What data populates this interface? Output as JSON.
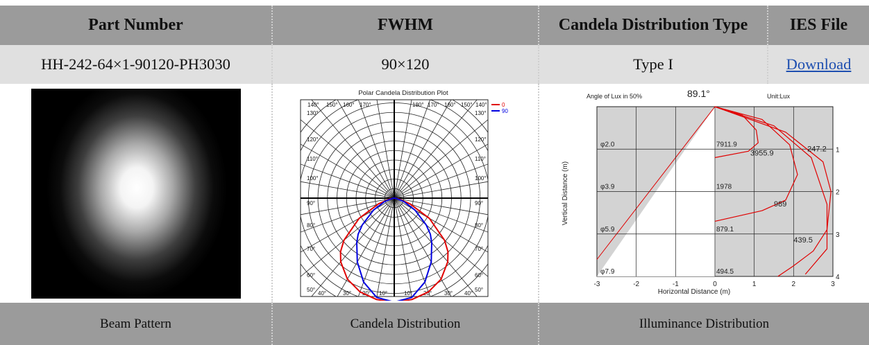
{
  "table": {
    "headers": [
      "Part Number",
      "FWHM",
      "Candela Distribution Type",
      "IES File"
    ],
    "row": {
      "part_number": "HH-242-64×1-90120-PH3030",
      "fwhm": "90×120",
      "type": "Type I",
      "ies_link": "Download"
    },
    "captions": [
      "Beam Pattern",
      "Candela Distribution",
      "Illuminance Distribution"
    ]
  },
  "colors": {
    "header_bg": "#9b9b9b",
    "value_bg": "#e0e0e0",
    "link": "#1e4fb0",
    "series_0": "#e00000",
    "series_90": "#0000e0"
  },
  "chart_data": [
    {
      "type": "polar",
      "title": "Polar Candela Distribution Plot",
      "angle_labels_left": [
        "140°",
        "150°",
        "160°",
        "170°",
        "130°",
        "120°",
        "110°",
        "100°",
        "90°",
        "80°",
        "70°",
        "60°",
        "50°",
        "40°",
        "30°",
        "20°",
        "10°"
      ],
      "angle_labels_right": [
        "180°",
        "170°",
        "160°",
        "150°",
        "140°",
        "130°",
        "120°",
        "110°",
        "100°",
        "90°",
        "80°",
        "70°",
        "60°",
        "50°",
        "40°",
        "30°",
        "20°",
        "10°"
      ],
      "angles": [
        0,
        10,
        20,
        30,
        40,
        45,
        50,
        60,
        70,
        80,
        90
      ],
      "series": [
        {
          "name": "0",
          "values": [
            1.0,
            0.99,
            0.96,
            0.9,
            0.8,
            0.73,
            0.63,
            0.39,
            0.16,
            0.04,
            0
          ]
        },
        {
          "name": "90",
          "values": [
            1.0,
            0.97,
            0.86,
            0.71,
            0.56,
            0.49,
            0.4,
            0.23,
            0.1,
            0.02,
            0
          ]
        }
      ]
    },
    {
      "type": "line",
      "title": "Angle of Lux in 50%",
      "angle_value": "89.1°",
      "unit": "Unit:Lux",
      "xlabel": "Horizontal Distance (m)",
      "ylabel": "Vertical Distance (m)",
      "xlim": [
        -3,
        3
      ],
      "ylim": [
        0,
        4
      ],
      "x_ticks": [
        "-3",
        "-2",
        "-1",
        "0",
        "1",
        "2",
        "3"
      ],
      "y_ticks": [
        "1",
        "2",
        "3",
        "4"
      ],
      "diameters": [
        "φ2.0",
        "φ3.9",
        "φ5.9",
        "φ7.9"
      ],
      "center_lux": [
        "7911.9",
        "1978",
        "879.1",
        "494.5"
      ],
      "contours": [
        {
          "label": "3955.9",
          "label_x": 0.9,
          "label_y": 1.15,
          "points": [
            [
              0,
              0
            ],
            [
              0.7,
              0.2
            ],
            [
              1.05,
              0.55
            ],
            [
              1.1,
              0.85
            ],
            [
              0.85,
              1.05
            ],
            [
              0,
              1.2
            ]
          ]
        },
        {
          "label": "989",
          "label_x": 1.5,
          "label_y": 2.35,
          "points": [
            [
              0,
              0
            ],
            [
              1.2,
              0.3
            ],
            [
              1.9,
              0.9
            ],
            [
              2.1,
              1.6
            ],
            [
              1.8,
              2.2
            ],
            [
              1.2,
              2.45
            ],
            [
              0,
              2.7
            ]
          ]
        },
        {
          "label": "247.2",
          "label_x": 2.35,
          "label_y": 1.05,
          "points": [
            [
              0,
              0
            ],
            [
              1.8,
              0.6
            ],
            [
              2.75,
              1.3
            ],
            [
              2.95,
              2.0
            ],
            [
              2.85,
              2.9
            ],
            [
              2.5,
              3.4
            ],
            [
              2.0,
              3.75
            ],
            [
              1.6,
              4.0
            ]
          ]
        },
        {
          "label": "439.5",
          "label_x": 2.0,
          "label_y": 3.2,
          "points": [
            [
              0,
              0
            ],
            [
              1.5,
              0.45
            ],
            [
              2.45,
              1.2
            ],
            [
              2.85,
              2.3
            ],
            [
              2.85,
              3.35
            ],
            [
              2.3,
              3.95
            ]
          ]
        }
      ]
    }
  ]
}
